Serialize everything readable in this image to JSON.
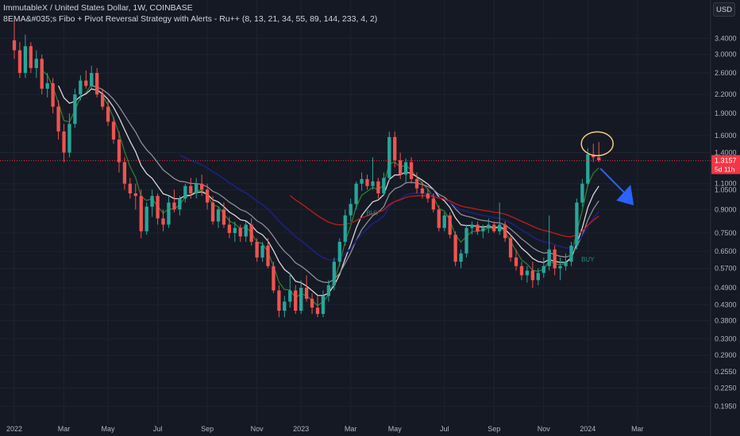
{
  "header": {
    "symbol_line": "ImmutableX / United States Dollar, 1W, COINBASE",
    "indicator_line": "8EMA&#035;s Fibo + Pivot Reversal Strategy with Alerts - Ru++ (8, 13, 21, 34, 55, 89, 144, 233, 4, 2)",
    "currency": "USD"
  },
  "price_tag": {
    "value": "1.3157",
    "countdown": "5d 11h",
    "color": "#f23645"
  },
  "colors": {
    "background": "#151924",
    "grid": "#1f2330",
    "up": "#26a69a",
    "down": "#ef5350",
    "ema_green": "#2e7d32",
    "ema_white": "#d8d8d8",
    "ema_gray": "#8c8f99",
    "ema_blue": "#1a237e",
    "ema_red": "#b71c1c",
    "ema_red_light": "#c0504d",
    "arrow": "#2962ff",
    "highlight_circle": "#ffcc80"
  },
  "chart_data": {
    "type": "candlestick",
    "y_scale": "log",
    "ylim": [
      0.17,
      4.0
    ],
    "y_ticks": [
      "3.4000",
      "3.0000",
      "2.6000",
      "2.2000",
      "1.9000",
      "1.6000",
      "1.4000",
      "1.1000",
      "1.0500",
      "0.9000",
      "0.7500",
      "0.6500",
      "0.5700",
      "0.4900",
      "0.4300",
      "0.3800",
      "0.3300",
      "0.2900",
      "0.2550",
      "0.2250",
      "0.1950"
    ],
    "x_labels": [
      "2022",
      "Mar",
      "May",
      "Jul",
      "Sep",
      "Nov",
      "2023",
      "Mar",
      "May",
      "Jul",
      "Sep",
      "Nov",
      "2024",
      "Mar"
    ],
    "x_label_weeks": [
      0,
      9,
      17,
      26,
      35,
      44,
      52,
      61,
      69,
      78,
      87,
      96,
      104,
      113
    ],
    "weeks_total": 124,
    "candles": [
      [
        3.35,
        3.9,
        2.9,
        3.1
      ],
      [
        3.1,
        3.3,
        2.5,
        2.6
      ],
      [
        2.6,
        3.5,
        2.5,
        3.2
      ],
      [
        3.2,
        3.3,
        2.6,
        2.7
      ],
      [
        2.7,
        3.1,
        2.5,
        2.9
      ],
      [
        2.9,
        3.0,
        2.2,
        2.3
      ],
      [
        2.3,
        2.6,
        2.15,
        2.4
      ],
      [
        2.4,
        2.5,
        1.9,
        2.0
      ],
      [
        2.0,
        2.1,
        1.55,
        1.65
      ],
      [
        1.65,
        1.75,
        1.3,
        1.4
      ],
      [
        1.4,
        1.9,
        1.35,
        1.75
      ],
      [
        1.75,
        2.3,
        1.7,
        2.2
      ],
      [
        2.2,
        2.55,
        2.1,
        2.45
      ],
      [
        2.45,
        2.65,
        2.3,
        2.35
      ],
      [
        2.35,
        2.75,
        2.3,
        2.6
      ],
      [
        2.6,
        2.7,
        2.15,
        2.2
      ],
      [
        2.2,
        2.3,
        1.95,
        2.0
      ],
      [
        2.0,
        2.1,
        1.72,
        1.78
      ],
      [
        1.78,
        1.85,
        1.5,
        1.55
      ],
      [
        1.55,
        1.65,
        1.2,
        1.3
      ],
      [
        1.3,
        1.35,
        1.05,
        1.1
      ],
      [
        1.1,
        1.15,
        0.98,
        1.02
      ],
      [
        1.02,
        1.1,
        0.9,
        1.0
      ],
      [
        1.0,
        1.05,
        0.72,
        0.76
      ],
      [
        0.76,
        0.95,
        0.74,
        0.92
      ],
      [
        0.92,
        1.05,
        0.85,
        1.0
      ],
      [
        1.0,
        1.02,
        0.8,
        0.84
      ],
      [
        0.84,
        0.9,
        0.76,
        0.8
      ],
      [
        0.8,
        1.0,
        0.78,
        0.95
      ],
      [
        0.95,
        1.05,
        0.88,
        0.9
      ],
      [
        0.9,
        1.0,
        0.86,
        0.98
      ],
      [
        0.98,
        1.1,
        0.95,
        1.08
      ],
      [
        1.08,
        1.15,
        0.98,
        1.02
      ],
      [
        1.02,
        1.15,
        0.98,
        1.1
      ],
      [
        1.1,
        1.18,
        1.0,
        1.05
      ],
      [
        1.05,
        1.1,
        0.9,
        0.95
      ],
      [
        0.95,
        1.0,
        0.8,
        0.82
      ],
      [
        0.82,
        0.92,
        0.78,
        0.9
      ],
      [
        0.9,
        0.95,
        0.78,
        0.8
      ],
      [
        0.8,
        0.85,
        0.72,
        0.75
      ],
      [
        0.75,
        0.82,
        0.7,
        0.78
      ],
      [
        0.78,
        0.8,
        0.7,
        0.73
      ],
      [
        0.73,
        0.82,
        0.7,
        0.8
      ],
      [
        0.8,
        0.84,
        0.68,
        0.7
      ],
      [
        0.7,
        0.72,
        0.6,
        0.62
      ],
      [
        0.62,
        0.7,
        0.6,
        0.68
      ],
      [
        0.68,
        0.72,
        0.57,
        0.58
      ],
      [
        0.58,
        0.6,
        0.47,
        0.48
      ],
      [
        0.48,
        0.5,
        0.39,
        0.41
      ],
      [
        0.41,
        0.46,
        0.39,
        0.44
      ],
      [
        0.44,
        0.55,
        0.42,
        0.48
      ],
      [
        0.48,
        0.5,
        0.4,
        0.41
      ],
      [
        0.41,
        0.52,
        0.4,
        0.49
      ],
      [
        0.49,
        0.54,
        0.44,
        0.45
      ],
      [
        0.45,
        0.47,
        0.4,
        0.42
      ],
      [
        0.42,
        0.46,
        0.39,
        0.4
      ],
      [
        0.4,
        0.48,
        0.39,
        0.46
      ],
      [
        0.46,
        0.52,
        0.44,
        0.5
      ],
      [
        0.5,
        0.62,
        0.48,
        0.6
      ],
      [
        0.6,
        0.72,
        0.58,
        0.7
      ],
      [
        0.7,
        0.9,
        0.68,
        0.86
      ],
      [
        0.86,
        0.98,
        0.82,
        0.94
      ],
      [
        0.94,
        1.12,
        0.9,
        1.1
      ],
      [
        1.1,
        1.2,
        1.04,
        1.14
      ],
      [
        1.14,
        1.18,
        1.05,
        1.08
      ],
      [
        1.08,
        1.35,
        1.05,
        1.12
      ],
      [
        1.12,
        1.15,
        0.98,
        1.02
      ],
      [
        1.02,
        1.2,
        1.0,
        1.15
      ],
      [
        1.15,
        1.65,
        1.12,
        1.58
      ],
      [
        1.58,
        1.65,
        1.25,
        1.32
      ],
      [
        1.32,
        1.4,
        1.14,
        1.18
      ],
      [
        1.18,
        1.34,
        1.1,
        1.3
      ],
      [
        1.3,
        1.35,
        1.1,
        1.14
      ],
      [
        1.14,
        1.2,
        1.02,
        1.06
      ],
      [
        1.06,
        1.12,
        0.98,
        1.02
      ],
      [
        1.02,
        1.06,
        0.95,
        0.98
      ],
      [
        0.98,
        1.02,
        0.88,
        0.9
      ],
      [
        0.9,
        0.93,
        0.76,
        0.78
      ],
      [
        0.78,
        0.88,
        0.76,
        0.86
      ],
      [
        0.86,
        0.88,
        0.72,
        0.74
      ],
      [
        0.74,
        0.76,
        0.58,
        0.6
      ],
      [
        0.6,
        0.66,
        0.57,
        0.64
      ],
      [
        0.64,
        0.8,
        0.62,
        0.78
      ],
      [
        0.78,
        0.82,
        0.74,
        0.8
      ],
      [
        0.8,
        0.82,
        0.74,
        0.76
      ],
      [
        0.76,
        0.8,
        0.72,
        0.78
      ],
      [
        0.78,
        0.84,
        0.75,
        0.8
      ],
      [
        0.8,
        0.82,
        0.75,
        0.76
      ],
      [
        0.76,
        0.95,
        0.74,
        0.8
      ],
      [
        0.8,
        0.82,
        0.7,
        0.72
      ],
      [
        0.72,
        0.74,
        0.6,
        0.62
      ],
      [
        0.62,
        0.66,
        0.56,
        0.58
      ],
      [
        0.58,
        0.6,
        0.52,
        0.54
      ],
      [
        0.54,
        0.58,
        0.51,
        0.56
      ],
      [
        0.56,
        0.6,
        0.49,
        0.52
      ],
      [
        0.52,
        0.57,
        0.5,
        0.55
      ],
      [
        0.55,
        0.62,
        0.53,
        0.58
      ],
      [
        0.58,
        0.86,
        0.56,
        0.66
      ],
      [
        0.66,
        0.68,
        0.54,
        0.57
      ],
      [
        0.57,
        0.62,
        0.52,
        0.58
      ],
      [
        0.58,
        0.64,
        0.56,
        0.6
      ],
      [
        0.6,
        0.7,
        0.58,
        0.68
      ],
      [
        0.68,
        0.98,
        0.66,
        0.95
      ],
      [
        0.95,
        1.14,
        0.92,
        1.1
      ],
      [
        1.1,
        1.45,
        1.08,
        1.38
      ],
      [
        1.38,
        1.5,
        1.3,
        1.35
      ],
      [
        1.35,
        1.52,
        1.3,
        1.32
      ]
    ],
    "signals": [
      {
        "label": "BUY",
        "week": 65,
        "price": 0.86
      },
      {
        "label": "BUY",
        "week": 104,
        "price": 0.6
      }
    ],
    "last_price": 1.3157
  }
}
